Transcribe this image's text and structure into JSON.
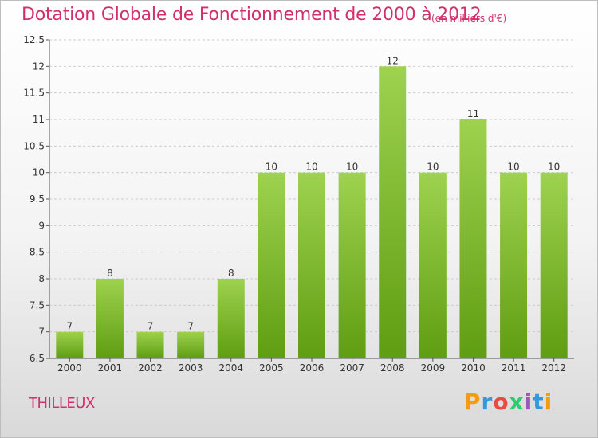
{
  "header": {
    "title": "Dotation Globale de Fonctionnement de 2000 à 2012",
    "unit_note": "(en milliers d'€)"
  },
  "footer": {
    "commune": "THILLEUX",
    "logo": {
      "text": "Proxiti",
      "letters": [
        {
          "char": "P",
          "color": "#f39c12"
        },
        {
          "char": "r",
          "color": "#3498db"
        },
        {
          "char": "o",
          "color": "#e74c3c"
        },
        {
          "char": "x",
          "color": "#2ecc71"
        },
        {
          "char": "i",
          "color": "#9b59b6"
        },
        {
          "char": "t",
          "color": "#3498db"
        },
        {
          "char": "i",
          "color": "#f39c12"
        }
      ]
    }
  },
  "colors": {
    "accent": "#d2306b",
    "bar_light": "#9ed24f",
    "bar_dark": "#5f9d12",
    "grid": "#cccccc"
  },
  "chart_data": {
    "type": "bar",
    "title": "Dotation Globale de Fonctionnement de 2000 à 2012",
    "subtitle": "(en milliers d'€)",
    "categories": [
      "2000",
      "2001",
      "2002",
      "2003",
      "2004",
      "2005",
      "2006",
      "2007",
      "2008",
      "2009",
      "2010",
      "2011",
      "2012"
    ],
    "values": [
      7,
      8,
      7,
      7,
      8,
      10,
      10,
      10,
      12,
      10,
      11,
      10,
      10
    ],
    "data_labels": [
      "7",
      "8",
      "7",
      "7",
      "8",
      "10",
      "10",
      "10",
      "12",
      "10",
      "11",
      "10",
      "10"
    ],
    "ylim": [
      6.5,
      12.5
    ],
    "yticks": [
      6.5,
      7,
      7.5,
      8,
      8.5,
      9,
      9.5,
      10,
      10.5,
      11,
      11.5,
      12,
      12.5
    ],
    "ytick_labels": [
      "6.5",
      "7",
      "7.5",
      "8",
      "8.5",
      "9",
      "9.5",
      "10",
      "10.5",
      "11",
      "11.5",
      "12",
      "12.5"
    ],
    "grid": true,
    "xlabel": "",
    "ylabel": ""
  }
}
